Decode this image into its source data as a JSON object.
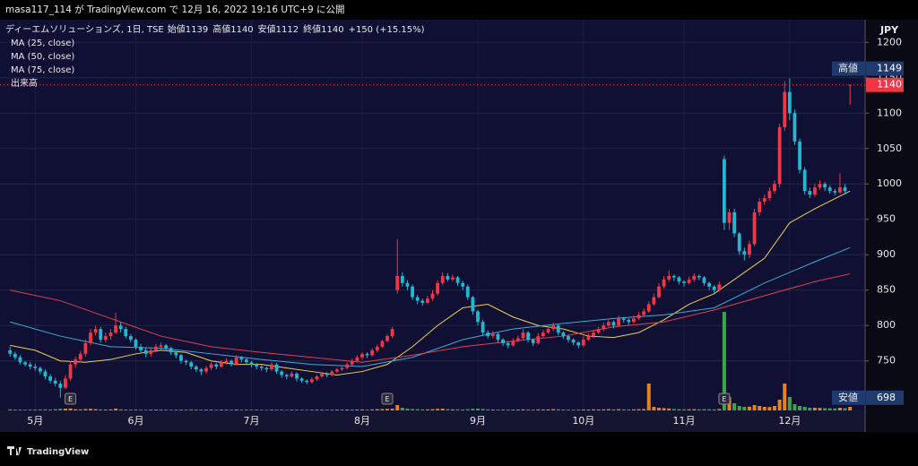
{
  "chart_data": {
    "type": "candlestick",
    "published": "masa117_114 が TradingView.com で 12月 16, 2022 19:16 UTC+9 に公開",
    "symbol": "ディーエムソリューションズ, 1日, TSE",
    "ohlc_header": [
      {
        "label": "始値",
        "value": 1139
      },
      {
        "label": "高値",
        "value": 1140
      },
      {
        "label": "安値",
        "value": 1112
      },
      {
        "label": "終値",
        "value": 1140
      }
    ],
    "change": "+150 (+15.15%)",
    "legend": [
      "MA (25, close)",
      "MA (50, close)",
      "MA (75, close)",
      "出来高"
    ],
    "currency": "JPY",
    "brand": "TradingView",
    "up_color": "#f23645",
    "down_color": "#22b8cf",
    "volume_up_color": "#e8821e",
    "volume_down_color": "#3fa34d",
    "ylim": [
      680,
      1232
    ],
    "yticks": [
      750,
      800,
      850,
      900,
      950,
      1000,
      1050,
      1100,
      1150,
      1200
    ],
    "xlim": [
      -2,
      170
    ],
    "xticks": [
      {
        "value": 5,
        "label": "5月"
      },
      {
        "value": 25,
        "label": "6月"
      },
      {
        "value": 48,
        "label": "7月"
      },
      {
        "value": 70,
        "label": "8月"
      },
      {
        "value": 93,
        "label": "9月"
      },
      {
        "value": 114,
        "label": "10月"
      },
      {
        "value": 134,
        "label": "11月"
      },
      {
        "value": 155,
        "label": "12月"
      }
    ],
    "ohlc": [
      [
        765,
        770,
        756,
        760
      ],
      [
        760,
        763,
        752,
        755
      ],
      [
        755,
        758,
        745,
        748
      ],
      [
        748,
        750,
        742,
        745
      ],
      [
        745,
        748,
        738,
        742
      ],
      [
        742,
        746,
        736,
        740
      ],
      [
        740,
        742,
        731,
        735
      ],
      [
        735,
        738,
        724,
        728
      ],
      [
        728,
        731,
        718,
        722
      ],
      [
        722,
        726,
        714,
        718
      ],
      [
        718,
        722,
        698,
        712
      ],
      [
        712,
        730,
        710,
        725
      ],
      [
        725,
        750,
        722,
        745
      ],
      [
        745,
        756,
        740,
        752
      ],
      [
        752,
        764,
        748,
        760
      ],
      [
        760,
        780,
        756,
        775
      ],
      [
        775,
        795,
        772,
        790
      ],
      [
        790,
        800,
        786,
        795
      ],
      [
        795,
        798,
        776,
        780
      ],
      [
        780,
        790,
        776,
        785
      ],
      [
        785,
        795,
        780,
        790
      ],
      [
        790,
        818,
        788,
        800
      ],
      [
        800,
        805,
        790,
        795
      ],
      [
        795,
        798,
        782,
        785
      ],
      [
        785,
        788,
        776,
        780
      ],
      [
        780,
        782,
        766,
        770
      ],
      [
        770,
        774,
        762,
        765
      ],
      [
        765,
        768,
        755,
        760
      ],
      [
        760,
        768,
        756,
        765
      ],
      [
        765,
        774,
        762,
        770
      ],
      [
        770,
        776,
        766,
        772
      ],
      [
        772,
        774,
        764,
        768
      ],
      [
        768,
        770,
        758,
        762
      ],
      [
        762,
        764,
        754,
        758
      ],
      [
        758,
        760,
        746,
        750
      ],
      [
        750,
        752,
        744,
        748
      ],
      [
        748,
        750,
        738,
        742
      ],
      [
        742,
        744,
        734,
        738
      ],
      [
        738,
        740,
        730,
        735
      ],
      [
        735,
        743,
        732,
        740
      ],
      [
        740,
        748,
        737,
        745
      ],
      [
        745,
        747,
        738,
        742
      ],
      [
        742,
        751,
        740,
        748
      ],
      [
        748,
        754,
        745,
        750
      ],
      [
        750,
        752,
        742,
        745
      ],
      [
        745,
        758,
        743,
        755
      ],
      [
        755,
        757,
        748,
        752
      ],
      [
        752,
        754,
        744,
        748
      ],
      [
        748,
        750,
        741,
        745
      ],
      [
        745,
        747,
        738,
        742
      ],
      [
        742,
        744,
        736,
        740
      ],
      [
        740,
        742,
        734,
        738
      ],
      [
        738,
        748,
        736,
        745
      ],
      [
        745,
        747,
        732,
        735
      ],
      [
        735,
        737,
        726,
        730
      ],
      [
        730,
        732,
        724,
        728
      ],
      [
        728,
        735,
        726,
        732
      ],
      [
        732,
        734,
        721,
        725
      ],
      [
        725,
        727,
        719,
        722
      ],
      [
        722,
        724,
        717,
        720
      ],
      [
        720,
        727,
        718,
        724
      ],
      [
        724,
        730,
        722,
        728
      ],
      [
        728,
        734,
        726,
        732
      ],
      [
        732,
        734,
        727,
        730
      ],
      [
        730,
        737,
        728,
        735
      ],
      [
        735,
        740,
        733,
        738
      ],
      [
        738,
        742,
        736,
        740
      ],
      [
        740,
        748,
        738,
        745
      ],
      [
        745,
        753,
        743,
        750
      ],
      [
        750,
        758,
        748,
        755
      ],
      [
        755,
        762,
        752,
        760
      ],
      [
        760,
        762,
        754,
        758
      ],
      [
        758,
        768,
        756,
        765
      ],
      [
        765,
        773,
        762,
        770
      ],
      [
        770,
        780,
        768,
        778
      ],
      [
        778,
        788,
        776,
        785
      ],
      [
        785,
        798,
        782,
        795
      ],
      [
        850,
        922,
        845,
        870
      ],
      [
        870,
        875,
        855,
        860
      ],
      [
        860,
        864,
        850,
        855
      ],
      [
        855,
        858,
        836,
        840
      ],
      [
        840,
        843,
        830,
        835
      ],
      [
        835,
        838,
        828,
        832
      ],
      [
        832,
        842,
        830,
        838
      ],
      [
        838,
        850,
        835,
        845
      ],
      [
        845,
        864,
        842,
        860
      ],
      [
        860,
        875,
        857,
        870
      ],
      [
        870,
        874,
        862,
        865
      ],
      [
        865,
        872,
        862,
        868
      ],
      [
        868,
        870,
        856,
        860
      ],
      [
        860,
        863,
        850,
        855
      ],
      [
        855,
        858,
        836,
        840
      ],
      [
        840,
        842,
        815,
        820
      ],
      [
        820,
        822,
        800,
        805
      ],
      [
        805,
        808,
        786,
        790
      ],
      [
        790,
        793,
        782,
        785
      ],
      [
        785,
        792,
        782,
        788
      ],
      [
        788,
        790,
        776,
        780
      ],
      [
        780,
        782,
        771,
        775
      ],
      [
        775,
        777,
        768,
        772
      ],
      [
        772,
        782,
        770,
        778
      ],
      [
        778,
        786,
        776,
        782
      ],
      [
        782,
        795,
        780,
        790
      ],
      [
        790,
        792,
        776,
        780
      ],
      [
        780,
        782,
        771,
        775
      ],
      [
        775,
        789,
        773,
        785
      ],
      [
        785,
        794,
        782,
        790
      ],
      [
        790,
        798,
        788,
        795
      ],
      [
        795,
        804,
        792,
        800
      ],
      [
        800,
        802,
        786,
        790
      ],
      [
        790,
        792,
        781,
        785
      ],
      [
        785,
        787,
        776,
        780
      ],
      [
        780,
        782,
        772,
        776
      ],
      [
        776,
        778,
        768,
        772
      ],
      [
        772,
        785,
        770,
        780
      ],
      [
        780,
        789,
        778,
        785
      ],
      [
        785,
        794,
        782,
        790
      ],
      [
        790,
        798,
        788,
        795
      ],
      [
        795,
        804,
        792,
        800
      ],
      [
        800,
        808,
        798,
        805
      ],
      [
        805,
        807,
        796,
        800
      ],
      [
        800,
        814,
        798,
        810
      ],
      [
        810,
        812,
        804,
        808
      ],
      [
        808,
        810,
        801,
        805
      ],
      [
        805,
        814,
        803,
        810
      ],
      [
        810,
        819,
        808,
        815
      ],
      [
        815,
        824,
        812,
        820
      ],
      [
        820,
        834,
        818,
        830
      ],
      [
        830,
        845,
        828,
        840
      ],
      [
        840,
        860,
        838,
        855
      ],
      [
        855,
        870,
        852,
        865
      ],
      [
        865,
        878,
        862,
        870
      ],
      [
        870,
        872,
        863,
        868
      ],
      [
        868,
        870,
        858,
        862
      ],
      [
        862,
        864,
        855,
        860
      ],
      [
        860,
        869,
        858,
        865
      ],
      [
        865,
        874,
        862,
        870
      ],
      [
        870,
        872,
        864,
        868
      ],
      [
        868,
        870,
        856,
        860
      ],
      [
        860,
        862,
        850,
        855
      ],
      [
        855,
        857,
        845,
        850
      ],
      [
        850,
        862,
        848,
        858
      ],
      [
        1035,
        1040,
        935,
        945
      ],
      [
        945,
        965,
        935,
        960
      ],
      [
        960,
        965,
        925,
        930
      ],
      [
        930,
        932,
        900,
        905
      ],
      [
        905,
        910,
        892,
        900
      ],
      [
        900,
        920,
        895,
        915
      ],
      [
        915,
        965,
        912,
        960
      ],
      [
        960,
        980,
        955,
        975
      ],
      [
        975,
        985,
        970,
        980
      ],
      [
        980,
        995,
        976,
        990
      ],
      [
        990,
        1005,
        986,
        1000
      ],
      [
        1000,
        1085,
        995,
        1080
      ],
      [
        1080,
        1145,
        1075,
        1130
      ],
      [
        1130,
        1149,
        1090,
        1100
      ],
      [
        1100,
        1105,
        1055,
        1060
      ],
      [
        1060,
        1064,
        1015,
        1020
      ],
      [
        1020,
        1024,
        985,
        990
      ],
      [
        990,
        995,
        980,
        985
      ],
      [
        985,
        1000,
        982,
        995
      ],
      [
        995,
        1005,
        992,
        1000
      ],
      [
        1000,
        1003,
        990,
        995
      ],
      [
        995,
        998,
        986,
        990
      ],
      [
        990,
        993,
        984,
        988
      ],
      [
        988,
        1015,
        986,
        995
      ],
      [
        995,
        1000,
        985,
        990
      ],
      [
        1139,
        1140,
        1112,
        1140
      ]
    ],
    "volume": [
      12,
      10,
      9,
      8,
      9,
      10,
      11,
      12,
      10,
      14,
      18,
      20,
      22,
      14,
      12,
      16,
      18,
      14,
      12,
      10,
      12,
      20,
      12,
      10,
      9,
      10,
      9,
      8,
      9,
      10,
      8,
      9,
      8,
      9,
      10,
      9,
      12,
      10,
      9,
      8,
      9,
      8,
      9,
      8,
      9,
      10,
      8,
      9,
      8,
      9,
      8,
      7,
      8,
      9,
      8,
      7,
      8,
      9,
      8,
      7,
      8,
      9,
      8,
      9,
      8,
      9,
      8,
      10,
      9,
      10,
      11,
      9,
      12,
      14,
      16,
      18,
      20,
      60,
      30,
      20,
      16,
      14,
      12,
      12,
      14,
      18,
      20,
      14,
      12,
      12,
      11,
      14,
      18,
      20,
      16,
      12,
      10,
      10,
      11,
      10,
      9,
      10,
      12,
      11,
      10,
      12,
      11,
      12,
      14,
      12,
      10,
      9,
      9,
      10,
      11,
      10,
      12,
      11,
      12,
      14,
      12,
      14,
      12,
      11,
      12,
      14,
      16,
      300,
      40,
      30,
      26,
      22,
      16,
      14,
      12,
      13,
      14,
      12,
      14,
      13,
      12,
      16,
      1100,
      150,
      80,
      50,
      40,
      42,
      60,
      50,
      40,
      38,
      50,
      120,
      300,
      150,
      70,
      50,
      40,
      30,
      30,
      28,
      25,
      24,
      22,
      30,
      26,
      40
    ],
    "volume_scale_px": 110,
    "ma": [
      {
        "name": "MA (25, close)",
        "color": "#f0d050",
        "x": [
          0,
          5,
          10,
          15,
          20,
          25,
          30,
          35,
          40,
          45,
          50,
          55,
          60,
          65,
          70,
          75,
          80,
          85,
          90,
          95,
          100,
          105,
          110,
          115,
          120,
          125,
          130,
          135,
          140,
          145,
          150,
          155,
          160,
          167
        ],
        "values": [
          772,
          765,
          750,
          748,
          752,
          760,
          765,
          762,
          750,
          745,
          745,
          740,
          735,
          730,
          735,
          745,
          770,
          800,
          825,
          830,
          812,
          800,
          795,
          785,
          783,
          790,
          808,
          830,
          845,
          870,
          895,
          945,
          965,
          990
        ]
      },
      {
        "name": "MA (50, close)",
        "color": "#3fa9d6",
        "x": [
          0,
          10,
          20,
          30,
          40,
          50,
          60,
          70,
          80,
          90,
          100,
          110,
          120,
          130,
          140,
          150,
          160,
          167
        ],
        "values": [
          805,
          785,
          770,
          768,
          760,
          752,
          745,
          742,
          755,
          780,
          795,
          803,
          810,
          815,
          825,
          860,
          890,
          910
        ]
      },
      {
        "name": "MA (75, close)",
        "color": "#e0404a",
        "x": [
          0,
          10,
          20,
          30,
          40,
          50,
          60,
          70,
          80,
          90,
          100,
          110,
          120,
          130,
          140,
          150,
          160,
          167
        ],
        "values": [
          850,
          835,
          810,
          785,
          770,
          762,
          755,
          748,
          758,
          770,
          778,
          785,
          798,
          805,
          822,
          842,
          862,
          873
        ]
      }
    ],
    "earnings_markers": [
      {
        "x": 12,
        "label": "E"
      },
      {
        "x": 75,
        "label": "E"
      },
      {
        "x": 142,
        "label": "E"
      }
    ],
    "price_labels": [
      {
        "label": "高値",
        "value": 1149,
        "color": "#1f3b6e"
      },
      {
        "value": 1140,
        "color": "#f23645"
      },
      {
        "label": "安値",
        "value": 698,
        "color": "#1f3b6e"
      }
    ]
  }
}
